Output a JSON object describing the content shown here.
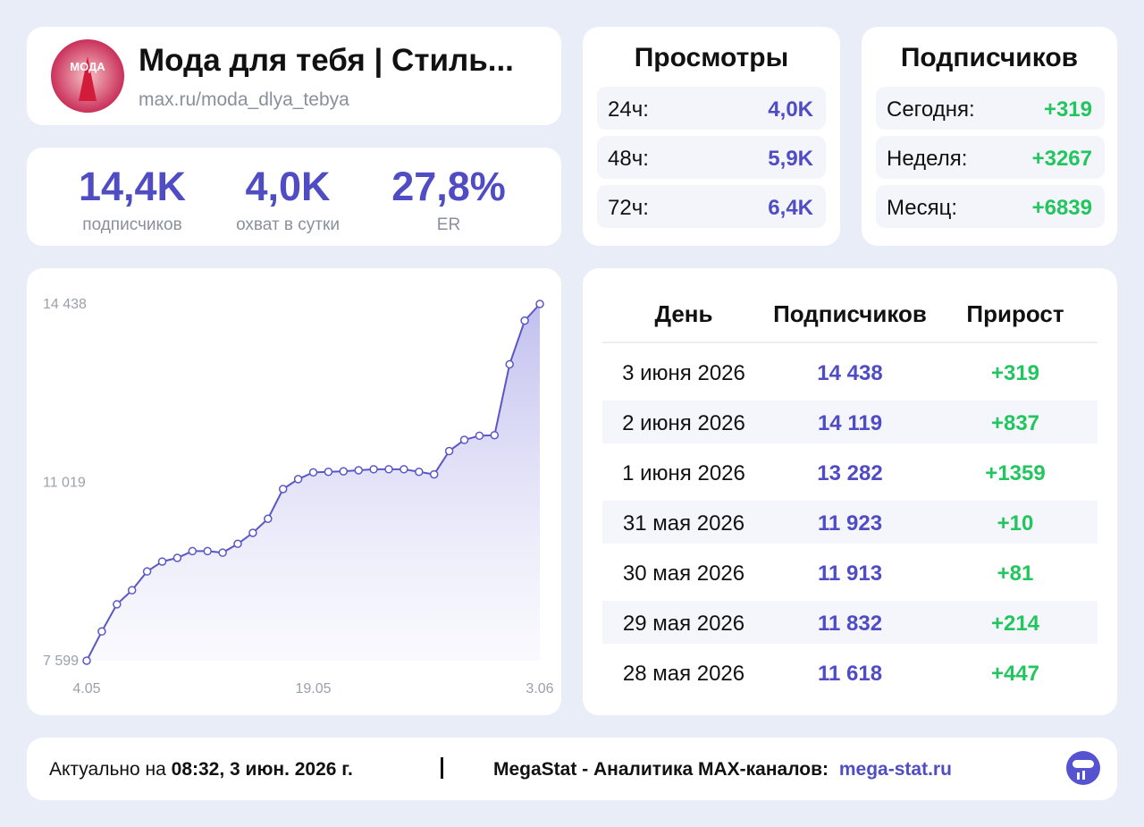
{
  "header": {
    "title": "Мода для тебя | Стиль...",
    "url": "max.ru/moda_dlya_tebya",
    "avatar_text": "МОДА"
  },
  "stats": [
    {
      "value": "14,4K",
      "label": "подписчиков"
    },
    {
      "value": "4,0K",
      "label": "охват в сутки"
    },
    {
      "value": "27,8%",
      "label": "ER"
    }
  ],
  "views": {
    "title": "Просмотры",
    "rows": [
      [
        "24ч:",
        "4,0K"
      ],
      [
        "48ч:",
        "5,9K"
      ],
      [
        "72ч:",
        "6,4K"
      ]
    ]
  },
  "subscribers": {
    "title": "Подписчиков",
    "rows": [
      [
        "Сегодня:",
        "+319"
      ],
      [
        "Неделя:",
        "+3267"
      ],
      [
        "Месяц:",
        "+6839"
      ]
    ]
  },
  "chart_data": {
    "type": "line",
    "color": "#5b57c6",
    "categories": [
      "4.05",
      null,
      null,
      null,
      null,
      null,
      null,
      null,
      null,
      null,
      null,
      null,
      null,
      null,
      null,
      "19.05",
      null,
      null,
      null,
      null,
      null,
      null,
      null,
      null,
      null,
      null,
      null,
      null,
      null,
      null,
      "3.06"
    ],
    "values": [
      7599,
      8160,
      8680,
      8950,
      9310,
      9500,
      9570,
      9700,
      9700,
      9670,
      9840,
      10050,
      10320,
      10890,
      11080,
      11210,
      11220,
      11230,
      11250,
      11270,
      11270,
      11270,
      11220,
      11171,
      11618,
      11832,
      11913,
      11923,
      13282,
      14119,
      14438
    ],
    "ylim": [
      7599,
      14438
    ],
    "yticks": [
      {
        "value": 7599,
        "label": "7 599"
      },
      {
        "value": 11019,
        "label": "11 019"
      },
      {
        "value": 14438,
        "label": "14 438"
      }
    ],
    "grid": false
  },
  "table": {
    "columns": [
      "День",
      "Подписчиков",
      "Прирост"
    ],
    "rows": [
      [
        "3 июня 2026",
        "14 438",
        "+319"
      ],
      [
        "2 июня 2026",
        "14 119",
        "+837"
      ],
      [
        "1 июня 2026",
        "13 282",
        "+1359"
      ],
      [
        "31 мая 2026",
        "11 923",
        "+10"
      ],
      [
        "30 мая 2026",
        "11 913",
        "+81"
      ],
      [
        "29 мая 2026",
        "11 832",
        "+214"
      ],
      [
        "28 мая 2026",
        "11 618",
        "+447"
      ]
    ]
  },
  "footer": {
    "prefix": "Актуально на",
    "timestamp": "08:32, 3 июн. 2026 г.",
    "brand": "MegaStat - Аналитика MAX-каналов:",
    "link": "mega-stat.ru"
  }
}
